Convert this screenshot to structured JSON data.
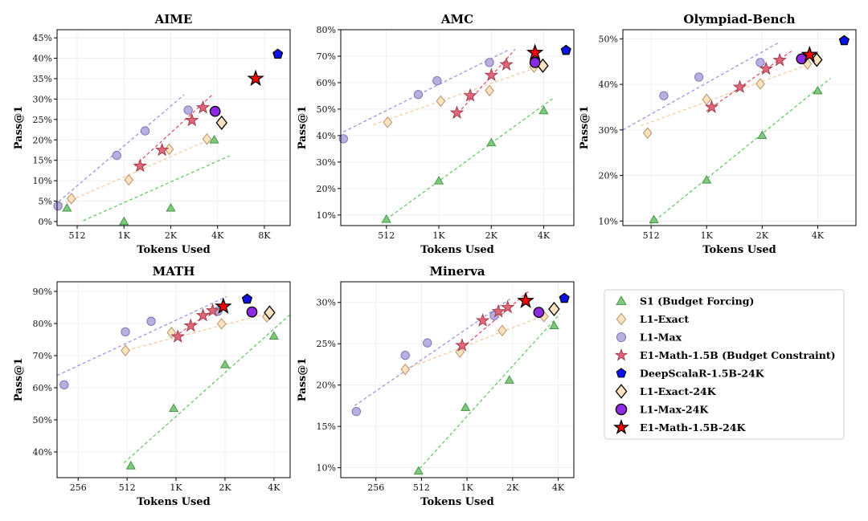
{
  "legend": {
    "items": [
      {
        "label": "S1 (Budget Forcing)",
        "marker": "tri",
        "fill": "#7fc97f",
        "stroke": "#3f8f3f"
      },
      {
        "label": "L1-Exact",
        "marker": "diamond",
        "fill": "#fde2bf",
        "stroke": "#b08a5e"
      },
      {
        "label": "L1-Max",
        "marker": "circle",
        "fill": "#b8aee0",
        "stroke": "#7a6fb0"
      },
      {
        "label": "E1-Math-1.5B (Budget Constraint)",
        "marker": "star",
        "fill": "#e0677a",
        "stroke": "#9c3445"
      },
      {
        "label": "DeepScalaR-1.5B-24K",
        "marker": "pentagon",
        "fill": "#0a12e6",
        "stroke": "#000000"
      },
      {
        "label": "L1-Exact-24K",
        "marker": "diamond",
        "fill": "#fde2bf",
        "stroke": "#000000",
        "big": true
      },
      {
        "label": "L1-Max-24K",
        "marker": "circle",
        "fill": "#8d2be2",
        "stroke": "#000000",
        "big": true
      },
      {
        "label": "E1-Math-1.5B-24K",
        "marker": "star",
        "fill": "#ff0000",
        "stroke": "#000000",
        "big": true
      }
    ]
  },
  "colors": {
    "s1": "#5dc95d",
    "exact": "#f5c89a",
    "max": "#9b8fe0",
    "e1": "#e0485e"
  },
  "chart_data": [
    {
      "type": "scatter",
      "title": "AIME",
      "xlabel": "Tokens Used",
      "ylabel": "Pass@1",
      "x_scale": "log2",
      "xlim": [
        380,
        12000
      ],
      "ylim": [
        -1,
        47
      ],
      "xticks": [
        {
          "v": 512,
          "t": "512"
        },
        {
          "v": 1024,
          "t": "1K"
        },
        {
          "v": 2048,
          "t": "2K"
        },
        {
          "v": 4096,
          "t": "4K"
        },
        {
          "v": 8192,
          "t": "8K"
        }
      ],
      "yticks": [
        {
          "v": 0,
          "t": "0%"
        },
        {
          "v": 5,
          "t": "5%"
        },
        {
          "v": 10,
          "t": "10%"
        },
        {
          "v": 15,
          "t": "15%"
        },
        {
          "v": 20,
          "t": "20%"
        },
        {
          "v": 25,
          "t": "25%"
        },
        {
          "v": 30,
          "t": "30%"
        },
        {
          "v": 35,
          "t": "35%"
        },
        {
          "v": 40,
          "t": "40%"
        },
        {
          "v": 45,
          "t": "45%"
        }
      ],
      "series": {
        "s1": [
          [
            440,
            3.3
          ],
          [
            1024,
            0
          ],
          [
            2048,
            3.3
          ],
          [
            3900,
            20
          ]
        ],
        "exact": [
          [
            470,
            5.6
          ],
          [
            1100,
            10.2
          ],
          [
            2000,
            17.7
          ],
          [
            3500,
            20.2
          ]
        ],
        "max": [
          [
            385,
            3.8
          ],
          [
            920,
            16.2
          ],
          [
            1400,
            22.2
          ],
          [
            2650,
            27.3
          ]
        ],
        "e1": [
          [
            1300,
            13.6
          ],
          [
            1800,
            17.5
          ],
          [
            2800,
            24.8
          ],
          [
            3300,
            27.9
          ]
        ]
      },
      "trend": {
        "s1": [
          [
            560,
            0.2
          ],
          [
            4900,
            16.1
          ]
        ],
        "exact": [
          [
            400,
            4.1
          ],
          [
            3700,
            20.2
          ]
        ],
        "max": [
          [
            390,
            4.9
          ],
          [
            2500,
            31.1
          ]
        ],
        "e1": [
          [
            1200,
            13.6
          ],
          [
            3800,
            31.1
          ]
        ]
      },
      "big": {
        "deepscaler": [
          10000,
          41.0
        ],
        "exact24": [
          4350,
          24.2
        ],
        "max24": [
          3950,
          27.0
        ],
        "e1_24": [
          7200,
          35.0
        ]
      }
    },
    {
      "type": "scatter",
      "title": "AMC",
      "xlabel": "Tokens Used",
      "ylabel": "Pass@1",
      "x_scale": "log2",
      "xlim": [
        280,
        6100
      ],
      "ylim": [
        6,
        80
      ],
      "xticks": [
        {
          "v": 512,
          "t": "512"
        },
        {
          "v": 1024,
          "t": "1K"
        },
        {
          "v": 2048,
          "t": "2K"
        },
        {
          "v": 4096,
          "t": "4K"
        }
      ],
      "yticks": [
        {
          "v": 10,
          "t": "10%"
        },
        {
          "v": 20,
          "t": "20%"
        },
        {
          "v": 30,
          "t": "30%"
        },
        {
          "v": 40,
          "t": "40%"
        },
        {
          "v": 50,
          "t": "50%"
        },
        {
          "v": 60,
          "t": "60%"
        },
        {
          "v": 70,
          "t": "70%"
        },
        {
          "v": 80,
          "t": "80%"
        }
      ],
      "series": {
        "s1": [
          [
            512,
            8.4
          ],
          [
            1024,
            22.9
          ],
          [
            2048,
            37.3
          ],
          [
            4096,
            49.4
          ]
        ],
        "exact": [
          [
            520,
            45.0
          ],
          [
            1050,
            53.0
          ],
          [
            2000,
            57.0
          ],
          [
            3600,
            65.9
          ]
        ],
        "max": [
          [
            290,
            38.8
          ],
          [
            780,
            55.5
          ],
          [
            1000,
            60.7
          ],
          [
            2000,
            67.6
          ]
        ],
        "e1": [
          [
            1300,
            48.6
          ],
          [
            1550,
            55.1
          ],
          [
            2050,
            62.8
          ],
          [
            2500,
            66.8
          ]
        ]
      },
      "trend": {
        "s1": [
          [
            480,
            7.1
          ],
          [
            4600,
            53.9
          ]
        ],
        "exact": [
          [
            430,
            44.1
          ],
          [
            3800,
            65.9
          ]
        ],
        "max": [
          [
            290,
            41.4
          ],
          [
            2600,
            72.5
          ]
        ],
        "e1": [
          [
            1250,
            46.7
          ],
          [
            2800,
            72.5
          ]
        ]
      },
      "big": {
        "deepscaler": [
          5500,
          72.2
        ],
        "exact24": [
          4050,
          66.4
        ],
        "max24": [
          3650,
          67.6
        ],
        "e1_24": [
          3650,
          71.3
        ]
      }
    },
    {
      "type": "scatter",
      "title": "Olympiad-Bench",
      "xlabel": "Tokens Used",
      "ylabel": "Pass@1",
      "x_scale": "log2",
      "xlim": [
        360,
        6600
      ],
      "ylim": [
        9,
        52
      ],
      "xticks": [
        {
          "v": 512,
          "t": "512"
        },
        {
          "v": 1024,
          "t": "1K"
        },
        {
          "v": 2048,
          "t": "2K"
        },
        {
          "v": 4096,
          "t": "4K"
        }
      ],
      "yticks": [
        {
          "v": 10,
          "t": "10%"
        },
        {
          "v": 20,
          "t": "20%"
        },
        {
          "v": 30,
          "t": "30%"
        },
        {
          "v": 40,
          "t": "40%"
        },
        {
          "v": 50,
          "t": "50%"
        }
      ],
      "series": {
        "s1": [
          [
            530,
            10.3
          ],
          [
            1024,
            19.0
          ],
          [
            2048,
            28.8
          ],
          [
            4096,
            38.6
          ]
        ],
        "exact": [
          [
            490,
            29.3
          ],
          [
            1024,
            36.7
          ],
          [
            2000,
            40.1
          ],
          [
            3600,
            44.5
          ]
        ],
        "max": [
          [
            600,
            37.5
          ],
          [
            930,
            41.6
          ],
          [
            2000,
            44.8
          ],
          [
            3300,
            45.6
          ]
        ],
        "e1": [
          [
            1090,
            35.0
          ],
          [
            1550,
            39.4
          ],
          [
            2150,
            43.4
          ],
          [
            2550,
            45.3
          ]
        ]
      },
      "trend": {
        "s1": [
          [
            480,
            8.5
          ],
          [
            4800,
            41.3
          ]
        ],
        "exact": [
          [
            450,
            30.9
          ],
          [
            3500,
            44.1
          ]
        ],
        "max": [
          [
            360,
            30.0
          ],
          [
            2550,
            49.3
          ]
        ],
        "e1": [
          [
            1020,
            34.1
          ],
          [
            2950,
            47.3
          ]
        ]
      },
      "big": {
        "deepscaler": [
          5700,
          49.6
        ],
        "exact24": [
          4050,
          45.4
        ],
        "max24": [
          3350,
          45.6
        ],
        "e1_24": [
          3700,
          46.5
        ]
      }
    },
    {
      "type": "scatter",
      "title": "MATH",
      "xlabel": "Tokens Used",
      "ylabel": "Pass@1",
      "x_scale": "log2",
      "xlim": [
        190,
        5150
      ],
      "ylim": [
        32,
        93
      ],
      "xticks": [
        {
          "v": 256,
          "t": "256"
        },
        {
          "v": 512,
          "t": "512"
        },
        {
          "v": 1024,
          "t": "1K"
        },
        {
          "v": 2048,
          "t": "2K"
        },
        {
          "v": 4096,
          "t": "4K"
        }
      ],
      "yticks": [
        {
          "v": 40,
          "t": "40%"
        },
        {
          "v": 50,
          "t": "50%"
        },
        {
          "v": 60,
          "t": "60%"
        },
        {
          "v": 70,
          "t": "70%"
        },
        {
          "v": 80,
          "t": "80%"
        },
        {
          "v": 90,
          "t": "90%"
        }
      ],
      "series": {
        "s1": [
          [
            540,
            35.7
          ],
          [
            990,
            53.6
          ],
          [
            2048,
            67.2
          ],
          [
            4096,
            76.1
          ]
        ],
        "exact": [
          [
            500,
            71.6
          ],
          [
            960,
            77.2
          ],
          [
            1950,
            79.9
          ],
          [
            3700,
            82.1
          ]
        ],
        "max": [
          [
            210,
            60.9
          ],
          [
            500,
            77.4
          ],
          [
            720,
            80.7
          ],
          [
            1850,
            83.8
          ]
        ],
        "e1": [
          [
            1050,
            75.9
          ],
          [
            1260,
            79.3
          ],
          [
            1500,
            82.5
          ],
          [
            1720,
            84.0
          ]
        ]
      },
      "trend": {
        "s1": [
          [
            490,
            36.6
          ],
          [
            5100,
            82.6
          ]
        ],
        "exact": [
          [
            510,
            71.7
          ],
          [
            3800,
            83.2
          ]
        ],
        "max": [
          [
            190,
            63.8
          ],
          [
            2100,
            88.4
          ]
        ],
        "e1": [
          [
            1000,
            75.9
          ],
          [
            2000,
            86.3
          ]
        ]
      },
      "big": {
        "deepscaler": [
          2800,
          87.6
        ],
        "exact24": [
          3850,
          83.4
        ],
        "max24": [
          3000,
          83.6
        ],
        "e1_24": [
          2000,
          85.3
        ]
      }
    },
    {
      "type": "scatter",
      "title": "Minerva",
      "xlabel": "Tokens Used",
      "ylabel": "Pass@1",
      "x_scale": "log2",
      "xlim": [
        150,
        5200
      ],
      "ylim": [
        8.8,
        32.5
      ],
      "xticks": [
        {
          "v": 256,
          "t": "256"
        },
        {
          "v": 512,
          "t": "512"
        },
        {
          "v": 1024,
          "t": "1K"
        },
        {
          "v": 2048,
          "t": "2K"
        },
        {
          "v": 4096,
          "t": "4K"
        }
      ],
      "yticks": [
        {
          "v": 10,
          "t": "10%"
        },
        {
          "v": 15,
          "t": "15%"
        },
        {
          "v": 20,
          "t": "20%"
        },
        {
          "v": 25,
          "t": "25%"
        },
        {
          "v": 30,
          "t": "30%"
        }
      ],
      "series": {
        "s1": [
          [
            490,
            9.6
          ],
          [
            1000,
            17.3
          ],
          [
            1950,
            20.6
          ],
          [
            3850,
            27.2
          ]
        ],
        "exact": [
          [
            400,
            21.9
          ],
          [
            920,
            24.0
          ],
          [
            1750,
            26.6
          ],
          [
            3300,
            28.3
          ]
        ],
        "max": [
          [
            190,
            16.8
          ],
          [
            400,
            23.6
          ],
          [
            560,
            25.1
          ],
          [
            1550,
            28.4
          ]
        ],
        "e1": [
          [
            950,
            24.8
          ],
          [
            1300,
            27.8
          ],
          [
            1650,
            28.9
          ],
          [
            1900,
            29.4
          ]
        ]
      },
      "trend": {
        "s1": [
          [
            470,
            9.4
          ],
          [
            4200,
            28.6
          ]
        ],
        "exact": [
          [
            410,
            22.0
          ],
          [
            3300,
            28.4
          ]
        ],
        "max": [
          [
            185,
            17.5
          ],
          [
            2000,
            30.5
          ]
        ],
        "e1": [
          [
            950,
            24.5
          ],
          [
            2600,
            31.3
          ]
        ]
      },
      "big": {
        "deepscaler": [
          4500,
          30.5
        ],
        "exact24": [
          3850,
          29.2
        ],
        "max24": [
          3050,
          28.8
        ],
        "e1_24": [
          2500,
          30.2
        ]
      }
    }
  ]
}
